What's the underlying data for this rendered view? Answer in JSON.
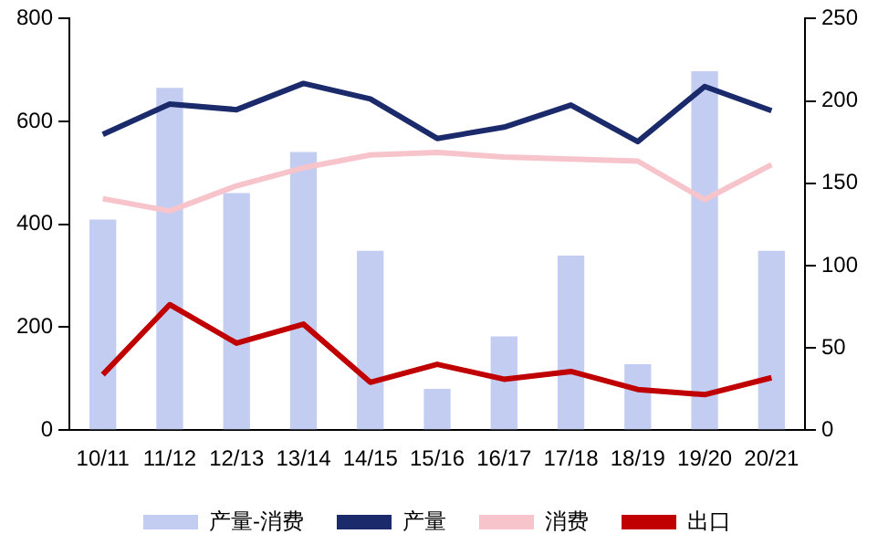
{
  "chart_data": {
    "type": "bar",
    "categories": [
      "10/11",
      "11/12",
      "12/13",
      "13/14",
      "14/15",
      "15/16",
      "16/17",
      "17/18",
      "18/19",
      "19/20",
      "20/21"
    ],
    "series": [
      {
        "name": "产量-消费",
        "axis": "y2",
        "color": "#c3cdf2",
        "values": [
          128,
          208,
          144,
          169,
          109,
          25,
          57,
          106,
          40,
          218,
          109
        ]
      },
      {
        "name": "产量",
        "type": "line",
        "color": "#1b2a6b",
        "values": [
          575,
          634,
          623,
          674,
          644,
          567,
          589,
          632,
          561,
          668,
          621
        ]
      },
      {
        "name": "消费",
        "type": "line",
        "color": "#f6c4ca",
        "values": [
          450,
          426,
          475,
          510,
          535,
          540,
          531,
          527,
          523,
          448,
          516
        ]
      },
      {
        "name": "出口",
        "type": "line",
        "color": "#c00000",
        "values": [
          108,
          244,
          169,
          206,
          93,
          128,
          99,
          114,
          79,
          69,
          102
        ]
      }
    ],
    "ylim": [
      0,
      800
    ],
    "yticks": [
      0,
      200,
      400,
      600,
      800
    ],
    "y2lim": [
      0,
      250
    ],
    "y2ticks": [
      0,
      50,
      100,
      150,
      200,
      250
    ],
    "grid": false,
    "legend": "bottom",
    "marker": "none",
    "line_style": "solid"
  }
}
